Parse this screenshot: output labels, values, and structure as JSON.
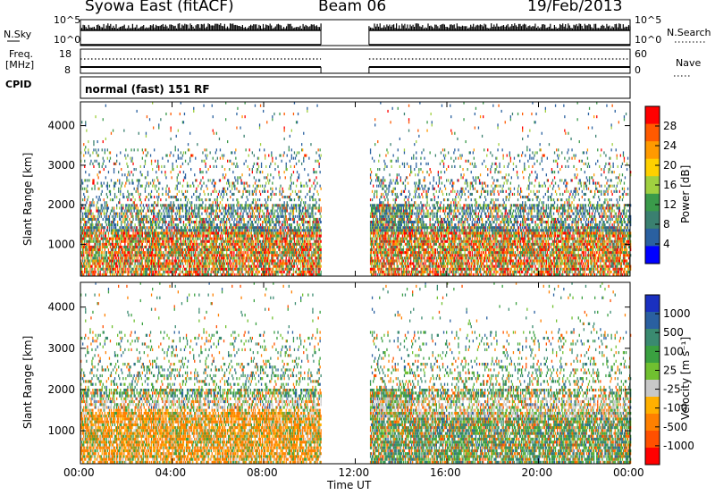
{
  "header": {
    "title": "Syowa East (fitACF)",
    "beam": "Beam 06",
    "date": "19/Feb/2013"
  },
  "noise_panel": {
    "left_label": "N.Sky",
    "right_label": "N.Search",
    "tick_top": "10^5",
    "tick_bottom": "10^0"
  },
  "freq_panel": {
    "left_label_1": "Freq.",
    "left_label_2": "[MHz]",
    "tick_top": "18",
    "tick_bottom": "8",
    "right_tick_top": "60",
    "right_tick_bottom": "0",
    "right_label": "Nave"
  },
  "cpid_panel": {
    "label": "CPID",
    "text": "normal (fast) 151 RF"
  },
  "chart_data": [
    {
      "type": "heatmap",
      "name": "power",
      "ylabel": "Slant Range [km]",
      "ylim": [
        200,
        4600
      ],
      "yticks": [
        1000,
        2000,
        3000,
        4000
      ],
      "xlim": [
        0,
        24
      ],
      "xticks": [
        0,
        4,
        8,
        12,
        16,
        20,
        24
      ],
      "xtick_labels": [
        "00:00",
        "04:00",
        "08:00",
        "12:00",
        "16:00",
        "20:00",
        "00:00"
      ],
      "colorbar": {
        "label": "Power [dB]",
        "ticks": [
          "28",
          "24",
          "20",
          "16",
          "12",
          "8",
          "4"
        ],
        "colors": [
          "#ff0000",
          "#ff5a00",
          "#ff9a00",
          "#ffd000",
          "#a0d040",
          "#3a9a4a",
          "#3a8070",
          "#2a60a0",
          "#0000ff"
        ]
      },
      "data_gap_hours": [
        10.5,
        12.6
      ]
    },
    {
      "type": "heatmap",
      "name": "velocity",
      "ylabel": "Slant Range [km]",
      "ylim": [
        200,
        4600
      ],
      "yticks": [
        1000,
        2000,
        3000,
        4000
      ],
      "xlim": [
        0,
        24
      ],
      "xticks": [
        0,
        4,
        8,
        12,
        16,
        20,
        24
      ],
      "xtick_labels": [
        "00:00",
        "04:00",
        "08:00",
        "12:00",
        "16:00",
        "20:00",
        "00:00"
      ],
      "xlabel": "Time UT",
      "colorbar": {
        "label": "Velocity [m s⁻¹]",
        "ticks": [
          "1000",
          "500",
          "100",
          "25",
          "-25",
          "-100",
          "-500",
          "-1000"
        ],
        "colors": [
          "#1a30c0",
          "#2a60a0",
          "#3a8a70",
          "#3aa040",
          "#70c030",
          "#c8c8c8",
          "#ffb000",
          "#ff8000",
          "#ff5000",
          "#ff0000"
        ]
      },
      "data_gap_hours": [
        10.5,
        12.6
      ]
    }
  ],
  "colors": {
    "frame": "#000000",
    "missing": "#ffffff"
  }
}
